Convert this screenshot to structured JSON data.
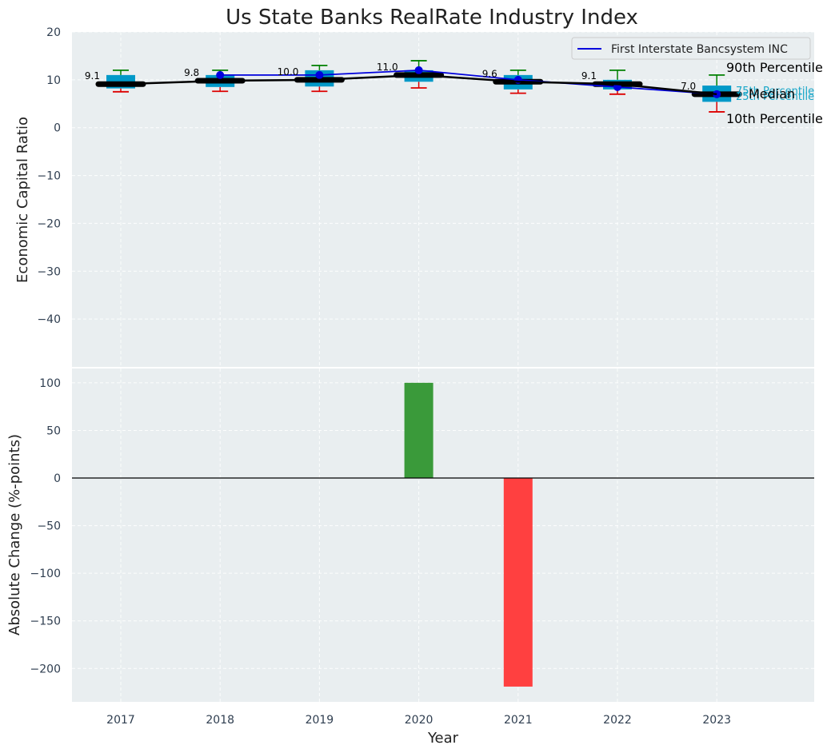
{
  "chart_data": [
    {
      "type": "box",
      "title": "Us State Banks RealRate Industry Index",
      "xlabel": "",
      "ylabel": "Economic Capital Ratio",
      "ylim": [
        -50,
        20
      ],
      "yticks": [
        20,
        10,
        0,
        -10,
        -20,
        -30,
        -40
      ],
      "grid": true,
      "categories": [
        "2017",
        "2018",
        "2019",
        "2020",
        "2021",
        "2022",
        "2023"
      ],
      "p10": [
        7.5,
        7.6,
        7.6,
        8.3,
        7.2,
        7.0,
        3.3
      ],
      "p25": [
        8.2,
        8.5,
        8.6,
        9.6,
        8.0,
        8.0,
        5.4
      ],
      "median": [
        9.1,
        9.8,
        10.0,
        11.0,
        9.6,
        9.1,
        7.0
      ],
      "p75": [
        11.0,
        11.0,
        12.0,
        12.0,
        11.0,
        10.0,
        8.8
      ],
      "p90": [
        12.0,
        12.0,
        13.0,
        14.0,
        12.0,
        12.0,
        11.0
      ],
      "median_labels": [
        "9.1",
        "9.8",
        "10.0",
        "11.0",
        "9.6",
        "9.1",
        "7.0"
      ],
      "series": [
        {
          "name": "First Interstate Bancsystem INC",
          "color": "#0000dd",
          "values": [
            null,
            11.0,
            11.0,
            12.0,
            10.0,
            8.5,
            7.0
          ]
        }
      ],
      "legend": {
        "position": "top-right",
        "entries": [
          "First Interstate Bancsystem INC"
        ]
      },
      "annotations": {
        "p90": "90th Percentile",
        "p75": "75th Percentile",
        "median": "Median",
        "p25": "25th Percentile",
        "p10": "10th Percentile"
      }
    },
    {
      "type": "bar",
      "xlabel": "Year",
      "ylabel": "Absolute Change (%-points)",
      "ylim": [
        -235,
        115
      ],
      "yticks": [
        100,
        50,
        0,
        -50,
        -100,
        -150,
        -200
      ],
      "grid": true,
      "categories": [
        "2017",
        "2018",
        "2019",
        "2020",
        "2021",
        "2022",
        "2023"
      ],
      "values": [
        0,
        0,
        0,
        100,
        -219,
        0,
        0
      ],
      "positive_color": "#3a9a3a",
      "negative_color": "#ff4040"
    }
  ],
  "colors": {
    "panel_bg": "#e9eef0",
    "box_fill": "#0099c8",
    "whisker_high": "#008000",
    "whisker_low": "#dd0000",
    "median_line": "#000000"
  }
}
